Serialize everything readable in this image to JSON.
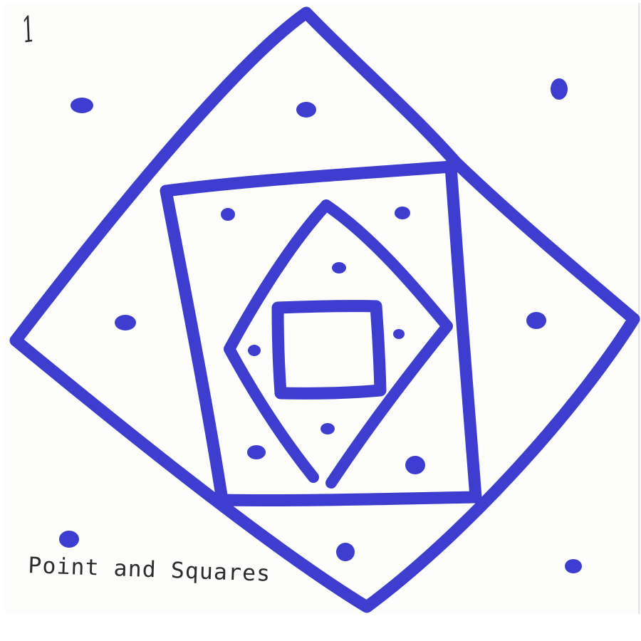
{
  "card": {
    "number": "1",
    "caption": "Point and Squares"
  },
  "ink": {
    "color": "#3d3dcf",
    "pencil": "#2c2c2c"
  }
}
